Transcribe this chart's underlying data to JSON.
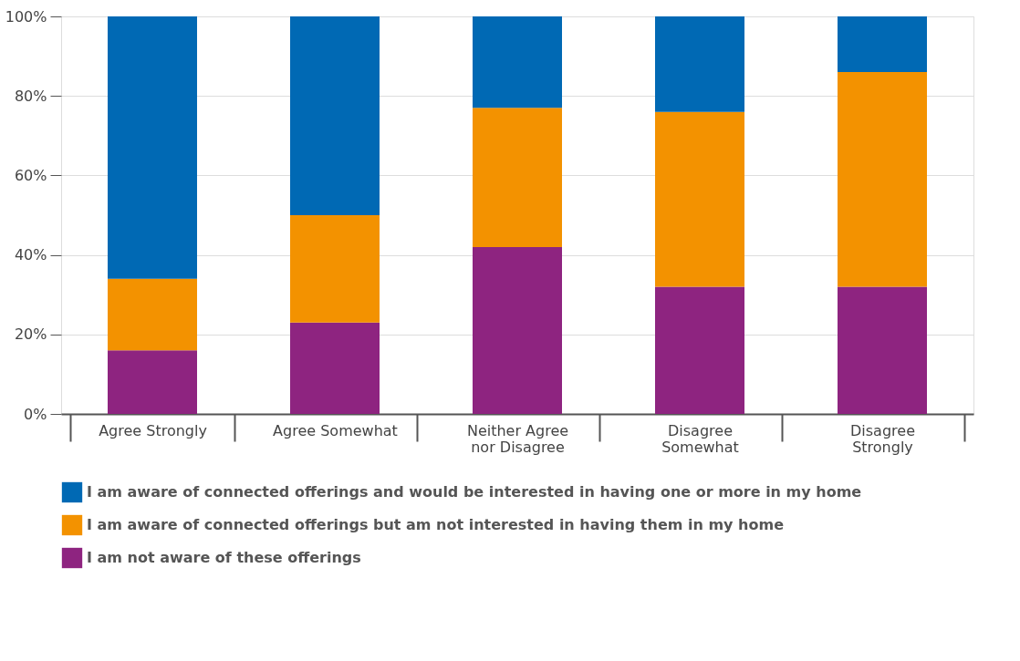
{
  "chart_data": {
    "type": "bar",
    "stacked": true,
    "categories": [
      "Agree Strongly",
      "Agree Somewhat",
      "Neither Agree nor Disagree",
      "Disagree Somewhat",
      "Disagree Strongly"
    ],
    "series": [
      {
        "name": "I am not aware of these offerings",
        "color": "#8e2480",
        "values": [
          16,
          23,
          42,
          32,
          32
        ]
      },
      {
        "name": "I am aware of connected offerings but am not interested in having them in my home",
        "color": "#f39200",
        "values": [
          18,
          27,
          35,
          44,
          54
        ]
      },
      {
        "name": "I am aware of connected offerings and would be interested in having one or more in my home",
        "color": "#0069b4",
        "values": [
          66,
          50,
          23,
          24,
          14
        ]
      }
    ],
    "ylim": [
      0,
      100
    ],
    "yticks": [
      {
        "value": 0,
        "label": "0%"
      },
      {
        "value": 20,
        "label": "20%"
      },
      {
        "value": 40,
        "label": "40%"
      },
      {
        "value": 60,
        "label": "60%"
      },
      {
        "value": 80,
        "label": "80%"
      },
      {
        "value": 100,
        "label": "100%"
      }
    ],
    "grid": "y",
    "legend": "bottom"
  }
}
